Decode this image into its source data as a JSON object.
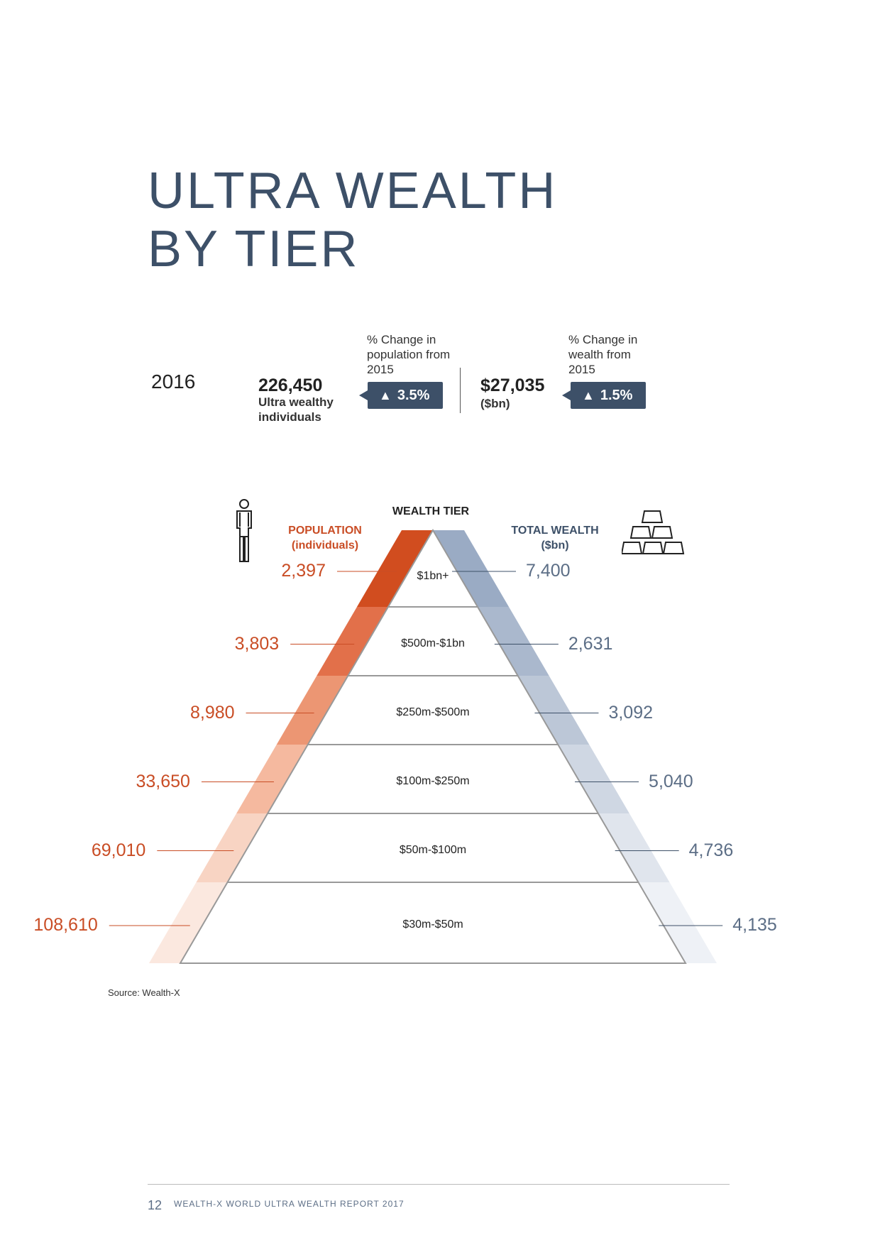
{
  "title": {
    "line1": "ULTRA WEALTH",
    "line2": "BY TIER"
  },
  "summary": {
    "year": "2016",
    "population_value": "226,450",
    "population_label": "Ultra wealthy individuals",
    "pop_change_label": "% Change in population from 2015",
    "pop_change_value": "3.5%",
    "wealth_value": "$27,035",
    "wealth_unit": "($bn)",
    "wealth_change_label": "% Change in wealth from 2015",
    "wealth_change_value": "1.5%"
  },
  "chart_headers": {
    "population": "POPULATION",
    "population_unit": "(individuals)",
    "tier": "WEALTH TIER",
    "wealth": "TOTAL WEALTH",
    "wealth_unit": "($bn)"
  },
  "chart_data": {
    "type": "table",
    "tiers": [
      "$1bn+",
      "$500m-$1bn",
      "$250m-$500m",
      "$100m-$250m",
      "$50m-$100m",
      "$30m-$50m"
    ],
    "population_display": [
      "2,397",
      "3,803",
      "8,980",
      "33,650",
      "69,010",
      "108,610"
    ],
    "wealth_display": [
      "7,400",
      "2,631",
      "3,092",
      "5,040",
      "4,736",
      "4,135"
    ],
    "population": [
      2397,
      3803,
      8980,
      33650,
      69010,
      108610
    ],
    "wealth": [
      7400,
      2631,
      3092,
      5040,
      4736,
      4135
    ],
    "colors": {
      "population": [
        "#d14d1f",
        "#e2704a",
        "#ec9673",
        "#f5b99f",
        "#f8d4c3",
        "#fbe8df"
      ],
      "wealth": [
        "#9aabc4",
        "#aab8cd",
        "#bcc7d7",
        "#cfd7e3",
        "#e0e5ed",
        "#eef1f6"
      ]
    }
  },
  "source": "Source: Wealth-X",
  "footer": {
    "page": "12",
    "text": "WEALTH-X WORLD ULTRA WEALTH REPORT 2017"
  },
  "colors": {
    "title": "#3d5068",
    "accent": "#c94d25",
    "badge": "#3d5068"
  }
}
